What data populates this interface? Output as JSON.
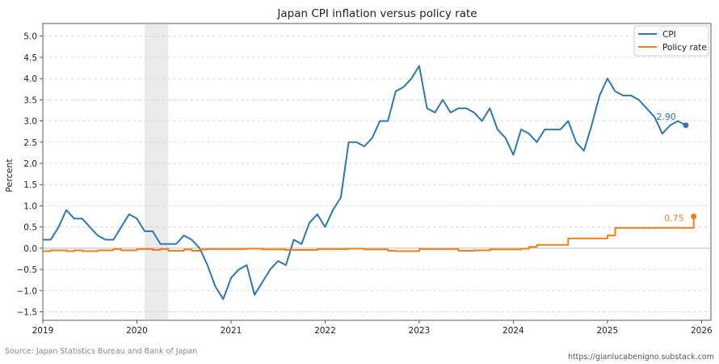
{
  "chart_data": {
    "type": "line",
    "title": "Japan CPI inflation versus policy rate",
    "xlabel": "",
    "ylabel": "Percent",
    "xlim": [
      2019.0,
      2026.1
    ],
    "ylim": [
      -1.7,
      5.3
    ],
    "x_ticks": [
      2019,
      2020,
      2021,
      2022,
      2023,
      2024,
      2025,
      2026
    ],
    "y_ticks": [
      -1.5,
      -1.0,
      -0.5,
      0.0,
      0.5,
      1.0,
      1.5,
      2.0,
      2.5,
      3.0,
      3.5,
      4.0,
      4.5,
      5.0
    ],
    "y_tick_labels": [
      "−1.5",
      "−1.0",
      "−0.5",
      "0.0",
      "0.5",
      "1.0",
      "1.5",
      "2.0",
      "2.5",
      "3.0",
      "3.5",
      "4.0",
      "4.5",
      "5.0"
    ],
    "grid": true,
    "legend_position": "top-right",
    "shaded_region": [
      2020.083,
      2020.333
    ],
    "series": [
      {
        "name": "CPI",
        "color": "#2f77b1",
        "step": false,
        "end_label": "2.90",
        "points": [
          [
            2019.0,
            0.2
          ],
          [
            2019.083,
            0.2
          ],
          [
            2019.167,
            0.5
          ],
          [
            2019.25,
            0.9
          ],
          [
            2019.333,
            0.7
          ],
          [
            2019.417,
            0.7
          ],
          [
            2019.5,
            0.5
          ],
          [
            2019.583,
            0.3
          ],
          [
            2019.667,
            0.2
          ],
          [
            2019.75,
            0.2
          ],
          [
            2019.833,
            0.5
          ],
          [
            2019.917,
            0.8
          ],
          [
            2020.0,
            0.7
          ],
          [
            2020.083,
            0.4
          ],
          [
            2020.167,
            0.4
          ],
          [
            2020.25,
            0.1
          ],
          [
            2020.333,
            0.1
          ],
          [
            2020.417,
            0.1
          ],
          [
            2020.5,
            0.3
          ],
          [
            2020.583,
            0.2
          ],
          [
            2020.667,
            0.0
          ],
          [
            2020.75,
            -0.4
          ],
          [
            2020.833,
            -0.9
          ],
          [
            2020.917,
            -1.2
          ],
          [
            2021.0,
            -0.7
          ],
          [
            2021.083,
            -0.5
          ],
          [
            2021.167,
            -0.4
          ],
          [
            2021.25,
            -1.1
          ],
          [
            2021.333,
            -0.8
          ],
          [
            2021.417,
            -0.5
          ],
          [
            2021.5,
            -0.3
          ],
          [
            2021.583,
            -0.4
          ],
          [
            2021.667,
            0.2
          ],
          [
            2021.75,
            0.1
          ],
          [
            2021.833,
            0.6
          ],
          [
            2021.917,
            0.8
          ],
          [
            2022.0,
            0.5
          ],
          [
            2022.083,
            0.9
          ],
          [
            2022.167,
            1.2
          ],
          [
            2022.25,
            2.5
          ],
          [
            2022.333,
            2.5
          ],
          [
            2022.417,
            2.4
          ],
          [
            2022.5,
            2.6
          ],
          [
            2022.583,
            3.0
          ],
          [
            2022.667,
            3.0
          ],
          [
            2022.75,
            3.7
          ],
          [
            2022.833,
            3.8
          ],
          [
            2022.917,
            4.0
          ],
          [
            2023.0,
            4.3
          ],
          [
            2023.083,
            3.3
          ],
          [
            2023.167,
            3.2
          ],
          [
            2023.25,
            3.5
          ],
          [
            2023.333,
            3.2
          ],
          [
            2023.417,
            3.3
          ],
          [
            2023.5,
            3.3
          ],
          [
            2023.583,
            3.2
          ],
          [
            2023.667,
            3.0
          ],
          [
            2023.75,
            3.3
          ],
          [
            2023.833,
            2.8
          ],
          [
            2023.917,
            2.6
          ],
          [
            2024.0,
            2.2
          ],
          [
            2024.083,
            2.8
          ],
          [
            2024.167,
            2.7
          ],
          [
            2024.25,
            2.5
          ],
          [
            2024.333,
            2.8
          ],
          [
            2024.417,
            2.8
          ],
          [
            2024.5,
            2.8
          ],
          [
            2024.583,
            3.0
          ],
          [
            2024.667,
            2.5
          ],
          [
            2024.75,
            2.3
          ],
          [
            2024.833,
            2.9
          ],
          [
            2024.917,
            3.6
          ],
          [
            2025.0,
            4.0
          ],
          [
            2025.083,
            3.7
          ],
          [
            2025.167,
            3.6
          ],
          [
            2025.25,
            3.6
          ],
          [
            2025.333,
            3.5
          ],
          [
            2025.417,
            3.3
          ],
          [
            2025.5,
            3.1
          ],
          [
            2025.583,
            2.7
          ],
          [
            2025.667,
            2.9
          ],
          [
            2025.75,
            3.0
          ],
          [
            2025.833,
            2.9
          ]
        ]
      },
      {
        "name": "Policy rate",
        "color": "#f07f1a",
        "step": true,
        "end_label": "0.75",
        "points": [
          [
            2019.0,
            -0.07
          ],
          [
            2019.083,
            -0.05
          ],
          [
            2019.25,
            -0.07
          ],
          [
            2019.333,
            -0.05
          ],
          [
            2019.417,
            -0.07
          ],
          [
            2019.583,
            -0.05
          ],
          [
            2019.75,
            -0.02
          ],
          [
            2019.833,
            -0.05
          ],
          [
            2020.0,
            -0.02
          ],
          [
            2020.167,
            -0.04
          ],
          [
            2020.25,
            -0.02
          ],
          [
            2020.333,
            -0.06
          ],
          [
            2020.5,
            -0.03
          ],
          [
            2020.583,
            -0.06
          ],
          [
            2020.667,
            -0.03
          ],
          [
            2020.75,
            -0.02
          ],
          [
            2021.167,
            -0.01
          ],
          [
            2021.333,
            -0.03
          ],
          [
            2021.583,
            -0.04
          ],
          [
            2021.917,
            -0.02
          ],
          [
            2022.25,
            -0.01
          ],
          [
            2022.417,
            -0.03
          ],
          [
            2022.667,
            -0.06
          ],
          [
            2022.75,
            -0.07
          ],
          [
            2023.0,
            -0.02
          ],
          [
            2023.417,
            -0.06
          ],
          [
            2023.583,
            -0.05
          ],
          [
            2023.75,
            -0.03
          ],
          [
            2024.083,
            -0.01
          ],
          [
            2024.167,
            0.03
          ],
          [
            2024.25,
            0.08
          ],
          [
            2024.583,
            0.23
          ],
          [
            2025.0,
            0.3
          ],
          [
            2025.083,
            0.48
          ],
          [
            2025.917,
            0.75
          ],
          [
            2025.917,
            0.75
          ]
        ]
      }
    ]
  },
  "source": "Source: Japan Statistics Bureau and Bank of Japan",
  "credit": "https://gianlucabenigno.substack.com"
}
